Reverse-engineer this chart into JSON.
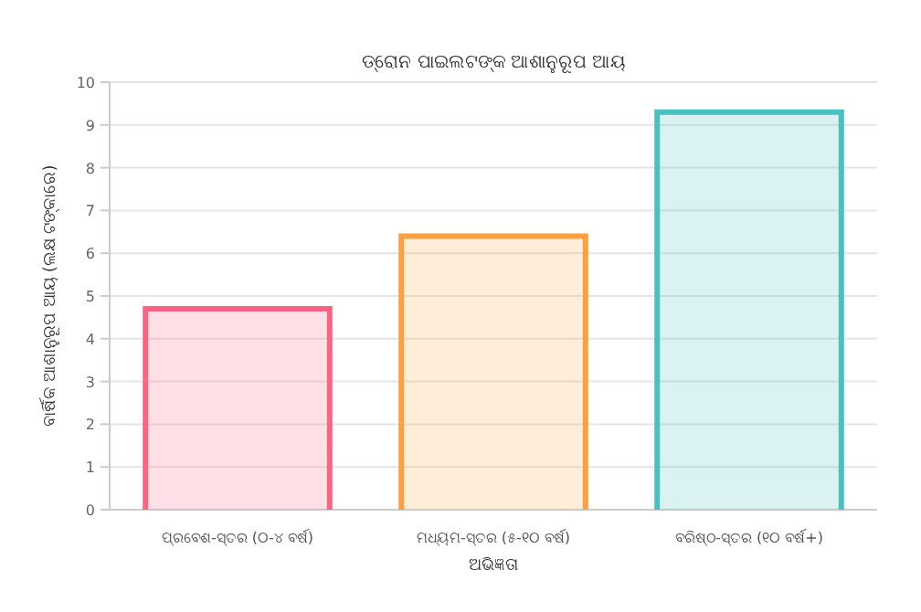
{
  "chart_data": {
    "type": "bar",
    "title": "ଡ୍ରୋନ ପାଇଲଟଙ୍କ ଆଶାନୁରୂପ ଆୟ",
    "xlabel": "ଅଭିଜ୍ଞତା",
    "ylabel": "ବାର୍ଷିକ ଆଶାନୁରୂପ ଆୟ (ଲକ୍ଷ ଟଙ୍କାରେ)",
    "categories": [
      "ପ୍ରବେଶ-ସ୍ତର (୦-୪ ବର୍ଷ)",
      "ମଧ୍ୟମ-ସ୍ତର (୫-୧୦ ବର୍ଷ)",
      "ବରିଷ୍ଠ-ସ୍ତର (୧୦ ବର୍ଷ+)"
    ],
    "values": [
      4.7,
      6.4,
      9.3
    ],
    "colors": [
      "#ff6384",
      "#ff9f40",
      "#4bc0c0"
    ],
    "ylim": [
      0,
      10
    ],
    "yticks": [
      0,
      1,
      2,
      3,
      4,
      5,
      6,
      7,
      8,
      9,
      10
    ],
    "grid": "y"
  }
}
